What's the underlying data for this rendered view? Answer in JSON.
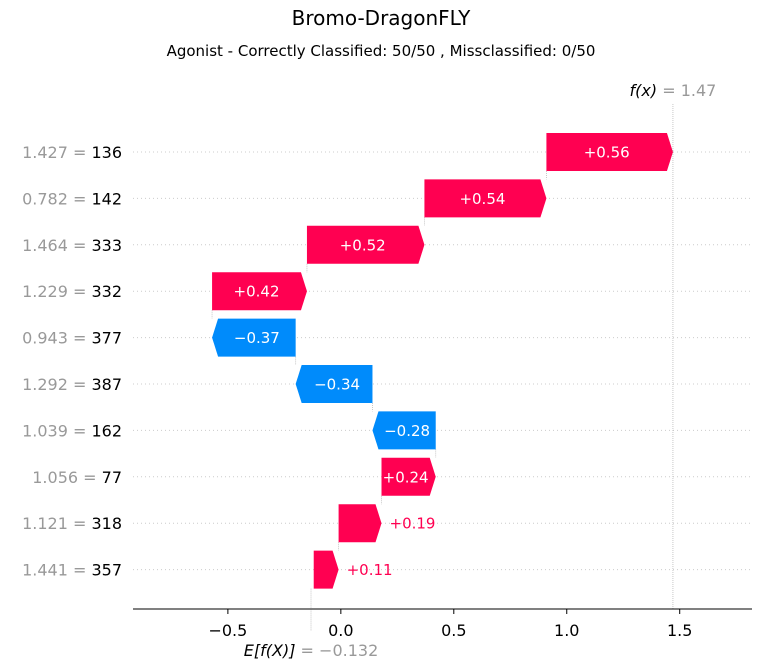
{
  "chart_data": {
    "type": "waterfall",
    "title": "Bromo-DragonFLY",
    "subtitle": "Agonist - Correctly Classified: 50/50 , Missclassified: 0/50",
    "base_value": -0.132,
    "base_label_prefix": "E[f(X)]",
    "base_label_value": "= −0.132",
    "final_value": 1.47,
    "final_label_prefix": "f(x)",
    "final_label_value": "= 1.47",
    "xlim": [
      -0.92,
      1.82
    ],
    "xticks": [
      -0.5,
      0.0,
      0.5,
      1.0,
      1.5
    ],
    "xtick_labels": [
      "−0.5",
      "0.0",
      "0.5",
      "1.0",
      "1.5"
    ],
    "grid": "horizontal dotted",
    "colors": {
      "positive": "#ff0051",
      "negative": "#008bfb",
      "value_label": "#999999"
    },
    "features": [
      {
        "value": "1.427",
        "name": "136",
        "contribution": 0.56,
        "label": "+0.56"
      },
      {
        "value": "0.782",
        "name": "142",
        "contribution": 0.54,
        "label": "+0.54"
      },
      {
        "value": "1.464",
        "name": "333",
        "contribution": 0.52,
        "label": "+0.52"
      },
      {
        "value": "1.229",
        "name": "332",
        "contribution": 0.42,
        "label": "+0.42"
      },
      {
        "value": "0.943",
        "name": "377",
        "contribution": -0.37,
        "label": "−0.37"
      },
      {
        "value": "1.292",
        "name": "387",
        "contribution": -0.34,
        "label": "−0.34"
      },
      {
        "value": "1.039",
        "name": "162",
        "contribution": -0.28,
        "label": "−0.28"
      },
      {
        "value": "1.056",
        "name": "77",
        "contribution": 0.24,
        "label": "+0.24"
      },
      {
        "value": "1.121",
        "name": "318",
        "contribution": 0.19,
        "label": "+0.19"
      },
      {
        "value": "1.441",
        "name": "357",
        "contribution": 0.11,
        "label": "+0.11"
      }
    ]
  }
}
